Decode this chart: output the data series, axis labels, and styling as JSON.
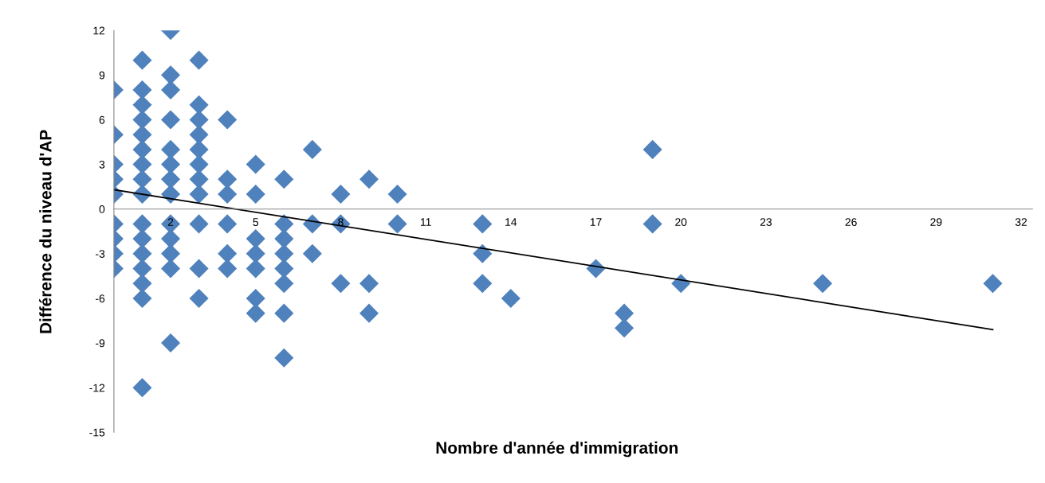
{
  "chart_data": {
    "type": "scatter",
    "xlabel": "Nombre d'année d'immigration",
    "ylabel": "Différence du niveau d'AP",
    "xlim": [
      0,
      32.4
    ],
    "xticks": [
      2,
      5,
      8,
      11,
      14,
      17,
      20,
      23,
      26,
      29,
      32
    ],
    "ylim": [
      -15,
      12
    ],
    "yticks": [
      -15,
      -12,
      -9,
      -6,
      -3,
      0,
      3,
      6,
      9,
      12
    ],
    "grid": false,
    "marker": "diamond",
    "series": [
      {
        "color": "#4f81bd",
        "x": [
          0,
          0,
          0,
          0,
          0,
          0,
          0,
          0,
          0,
          1,
          1,
          1,
          1,
          1,
          1,
          1,
          1,
          1,
          1,
          1,
          1,
          1,
          1,
          1,
          1,
          2,
          2,
          2,
          2,
          2,
          2,
          2,
          2,
          2,
          2,
          2,
          2,
          2,
          3,
          3,
          3,
          3,
          3,
          3,
          3,
          3,
          3,
          3,
          3,
          4,
          4,
          4,
          4,
          4,
          4,
          5,
          5,
          5,
          5,
          5,
          5,
          5,
          6,
          6,
          6,
          6,
          6,
          6,
          6,
          6,
          7,
          7,
          7,
          8,
          8,
          8,
          9,
          9,
          9,
          10,
          10,
          13,
          13,
          13,
          14,
          17,
          18,
          18,
          19,
          19,
          20,
          25,
          31
        ],
        "values": [
          8,
          5,
          3,
          2,
          1,
          -1,
          -2,
          -3,
          -4,
          10,
          8,
          7,
          6,
          5,
          4,
          3,
          2,
          1,
          -1,
          -2,
          -3,
          -4,
          -5,
          -6,
          -12,
          12,
          9,
          8,
          6,
          4,
          3,
          2,
          1,
          -1,
          -2,
          -3,
          -4,
          -9,
          10,
          7,
          6,
          5,
          4,
          3,
          2,
          1,
          -1,
          -4,
          -6,
          6,
          2,
          1,
          -1,
          -3,
          -4,
          3,
          1,
          -2,
          -3,
          -4,
          -6,
          -7,
          2,
          -1,
          -2,
          -3,
          -4,
          -5,
          -7,
          -10,
          4,
          -1,
          -3,
          1,
          -1,
          -5,
          2,
          -5,
          -7,
          1,
          -1,
          -1,
          -3,
          -5,
          -6,
          -4,
          -7,
          -8,
          4,
          -1,
          -5,
          -5,
          -5
        ]
      },
      {
        "type": "line",
        "color": "#000000",
        "marker": "none",
        "line_style": "solid",
        "x": [
          0,
          31
        ],
        "values": [
          1.3,
          -8.1
        ]
      }
    ]
  }
}
